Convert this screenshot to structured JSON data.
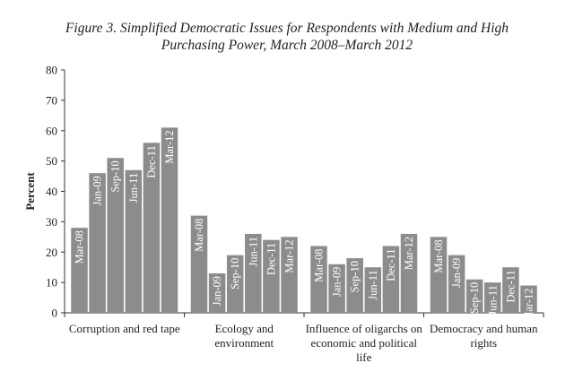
{
  "chart_data": {
    "type": "bar",
    "title_line1": "Figure 3. Simplified Democratic Issues for Respondents with Medium and High",
    "title_line2": "Purchasing Power, March 2008–March 2012",
    "ylabel": "Percent",
    "xlabel": "",
    "ylim": [
      0,
      80
    ],
    "yticks": [
      0,
      10,
      20,
      30,
      40,
      50,
      60,
      70,
      80
    ],
    "grid": false,
    "bar_color": "#8c8c8c",
    "series_labels": [
      "Mar-08",
      "Jan-09",
      "Sep-10",
      "Jun-11",
      "Dec-11",
      "Mar-12"
    ],
    "groups": [
      {
        "label_lines": [
          "Corruption and red tape"
        ],
        "values": [
          28,
          46,
          51,
          47,
          56,
          61
        ]
      },
      {
        "label_lines": [
          "Ecology and",
          "environment"
        ],
        "values": [
          32,
          13,
          19,
          26,
          24,
          25
        ]
      },
      {
        "label_lines": [
          "Influence of  oligarchs on",
          "economic and political",
          "life"
        ],
        "values": [
          22,
          16,
          18,
          15,
          22,
          26
        ]
      },
      {
        "label_lines": [
          "Democracy and human",
          "rights"
        ],
        "values": [
          25,
          19,
          11,
          10,
          15,
          9
        ]
      }
    ]
  }
}
